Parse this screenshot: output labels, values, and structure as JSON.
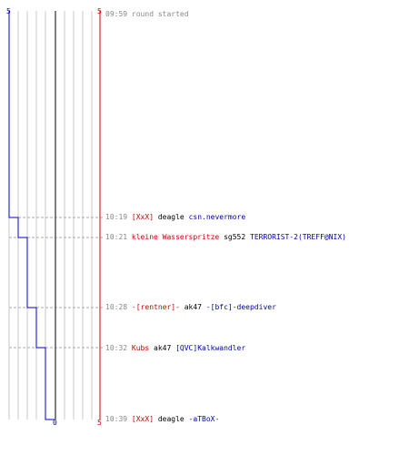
{
  "axis": {
    "top_left": "5",
    "top_right": "5",
    "bottom_zero": "0",
    "bottom_right": "5"
  },
  "colors": {
    "team_red": "#cc0000",
    "team_blue": "#0000aa",
    "timeline": "#888888"
  },
  "events": [
    {
      "time": "09:59",
      "kind": "info",
      "text": "round started"
    },
    {
      "time": "10:19",
      "kind": "kill",
      "killer": "[XxX]",
      "killer_team": "red",
      "weapon": "deagle",
      "victim": "csn.nevermore",
      "victim_team": "blue"
    },
    {
      "time": "10:21",
      "kind": "kill",
      "killer": "kleine Wasserspritze",
      "killer_team": "red",
      "weapon": "sg552",
      "victim": "TERRORIST-2(TREFF@NIX)",
      "victim_team": "blue"
    },
    {
      "time": "10:28",
      "kind": "kill",
      "killer": "-[rentner]-",
      "killer_team": "red",
      "weapon": "ak47",
      "victim": "-[bfc]-deepdiver",
      "victim_team": "blue"
    },
    {
      "time": "10:32",
      "kind": "kill",
      "killer": "Kubs",
      "killer_team": "red",
      "weapon": "ak47",
      "victim": "[QVC]Kalkwandler",
      "victim_team": "blue"
    },
    {
      "time": "10:39",
      "kind": "kill",
      "killer": "[XxX]",
      "killer_team": "red",
      "weapon": "deagle",
      "victim": "-aTBoX-",
      "victim_team": "blue"
    }
  ],
  "score_chart": {
    "blue_alive": [
      5,
      4,
      3,
      2,
      1,
      0
    ],
    "red_alive": [
      5,
      5,
      5,
      5,
      5,
      5
    ]
  }
}
